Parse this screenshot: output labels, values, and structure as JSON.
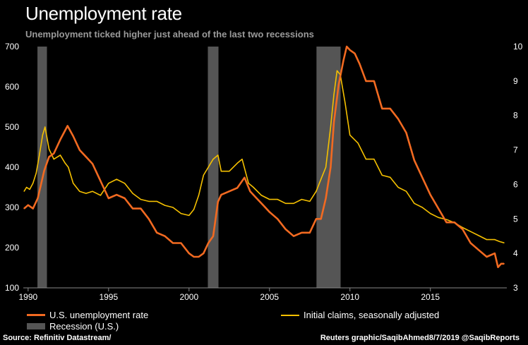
{
  "title": "Unemployment rate",
  "subtitle": "Unemployment ticked higher just ahead of the last two recessions",
  "source": "Source: Refinitiv Datastream/",
  "credit": "Reuters graphic/SaqibAhmed8/7/2019 @SaqibReports",
  "colors": {
    "unemployment": "#f26a21",
    "claims": "#f5c000",
    "recession": "#555555",
    "background": "#000000",
    "axis_text": "#ffffff"
  },
  "chart_data": {
    "type": "line",
    "x_range": [
      1989.7,
      2019.75
    ],
    "left_axis": {
      "ylim": [
        100,
        700
      ],
      "ticks": [
        "100",
        "200",
        "300",
        "400",
        "500",
        "600",
        "700"
      ],
      "series": "Initial claims, seasonally adjusted"
    },
    "right_axis": {
      "ylim": [
        3,
        10
      ],
      "ticks": [
        "3",
        "4",
        "5",
        "6",
        "7",
        "8",
        "9",
        "10"
      ],
      "series": "U.S. unemployment rate"
    },
    "x_ticks": [
      "1990",
      "1995",
      "2000",
      "2005",
      "2010",
      "2015"
    ],
    "x_tick_values": [
      1990,
      1995,
      2000,
      2005,
      2010,
      2015
    ],
    "grid": false,
    "legend_placement": "bottom",
    "recessions": [
      {
        "start": 1990.58,
        "end": 1991.17
      },
      {
        "start": 2001.17,
        "end": 2001.83
      },
      {
        "start": 2007.92,
        "end": 2009.42
      }
    ],
    "series": [
      {
        "name": "U.S. unemployment rate",
        "axis": "right",
        "x": [
          1989.75,
          1990.0,
          1990.3,
          1990.6,
          1990.8,
          1991.0,
          1991.3,
          1991.6,
          1992.0,
          1992.45,
          1992.8,
          1993.2,
          1993.6,
          1994.0,
          1994.5,
          1995.0,
          1995.5,
          1996.0,
          1996.5,
          1997.0,
          1997.5,
          1998.0,
          1998.5,
          1999.0,
          1999.5,
          2000.0,
          2000.3,
          2000.6,
          2000.9,
          2001.2,
          2001.5,
          2001.8,
          2002.0,
          2002.5,
          2003.0,
          2003.45,
          2003.8,
          2004.2,
          2004.6,
          2005.0,
          2005.5,
          2006.0,
          2006.5,
          2007.0,
          2007.5,
          2007.9,
          2008.2,
          2008.5,
          2008.8,
          2009.0,
          2009.3,
          2009.6,
          2009.8,
          2010.0,
          2010.3,
          2010.6,
          2011.0,
          2011.5,
          2012.0,
          2012.5,
          2013.0,
          2013.5,
          2014.0,
          2014.5,
          2015.0,
          2015.5,
          2016.0,
          2016.5,
          2017.0,
          2017.5,
          2018.0,
          2018.5,
          2019.0,
          2019.2,
          2019.4,
          2019.58
        ],
        "values": [
          5.3,
          5.4,
          5.3,
          5.6,
          6.0,
          6.4,
          6.8,
          6.9,
          7.3,
          7.7,
          7.4,
          7.0,
          6.8,
          6.6,
          6.1,
          5.6,
          5.7,
          5.6,
          5.3,
          5.3,
          5.0,
          4.6,
          4.5,
          4.3,
          4.3,
          4.0,
          3.9,
          3.9,
          4.0,
          4.3,
          4.5,
          5.5,
          5.7,
          5.8,
          5.9,
          6.2,
          5.8,
          5.6,
          5.4,
          5.2,
          5.0,
          4.7,
          4.5,
          4.6,
          4.6,
          5.0,
          5.0,
          5.6,
          6.5,
          7.8,
          8.9,
          9.6,
          10.0,
          9.9,
          9.8,
          9.5,
          9.0,
          9.0,
          8.2,
          8.2,
          7.9,
          7.5,
          6.7,
          6.2,
          5.7,
          5.3,
          4.9,
          4.9,
          4.7,
          4.3,
          4.1,
          3.9,
          4.0,
          3.6,
          3.7,
          3.7
        ]
      },
      {
        "name": "Initial claims, seasonally adjusted",
        "axis": "left",
        "x": [
          1989.75,
          1989.9,
          1990.1,
          1990.3,
          1990.5,
          1990.7,
          1990.9,
          1991.05,
          1991.3,
          1991.6,
          1992.0,
          1992.3,
          1992.5,
          1992.8,
          1993.2,
          1993.6,
          1994.0,
          1994.5,
          1995.0,
          1995.5,
          1996.0,
          1996.5,
          1997.0,
          1997.5,
          1998.0,
          1998.5,
          1999.0,
          1999.5,
          2000.0,
          2000.3,
          2000.6,
          2000.9,
          2001.2,
          2001.5,
          2001.8,
          2002.0,
          2002.5,
          2003.0,
          2003.3,
          2003.7,
          2004.0,
          2004.5,
          2005.0,
          2005.5,
          2006.0,
          2006.5,
          2007.0,
          2007.5,
          2007.9,
          2008.2,
          2008.5,
          2008.8,
          2009.0,
          2009.2,
          2009.4,
          2009.7,
          2010.0,
          2010.5,
          2011.0,
          2011.5,
          2012.0,
          2012.5,
          2013.0,
          2013.5,
          2014.0,
          2014.5,
          2015.0,
          2015.5,
          2016.0,
          2016.5,
          2017.0,
          2017.5,
          2018.0,
          2018.5,
          2019.0,
          2019.3,
          2019.58
        ],
        "values": [
          340,
          350,
          345,
          360,
          385,
          430,
          480,
          500,
          445,
          420,
          430,
          410,
          400,
          360,
          340,
          335,
          340,
          330,
          360,
          370,
          360,
          335,
          320,
          315,
          315,
          305,
          300,
          285,
          280,
          295,
          330,
          380,
          400,
          420,
          430,
          390,
          390,
          410,
          420,
          360,
          350,
          330,
          320,
          320,
          310,
          310,
          320,
          315,
          340,
          370,
          400,
          500,
          580,
          640,
          630,
          560,
          480,
          460,
          420,
          420,
          380,
          375,
          350,
          340,
          310,
          300,
          285,
          275,
          270,
          262,
          250,
          240,
          230,
          220,
          220,
          215,
          212
        ]
      }
    ]
  },
  "legend": {
    "unemployment": "U.S. unemployment rate",
    "claims": "Initial claims, seasonally adjusted",
    "recession": "Recession (U.S.)"
  }
}
